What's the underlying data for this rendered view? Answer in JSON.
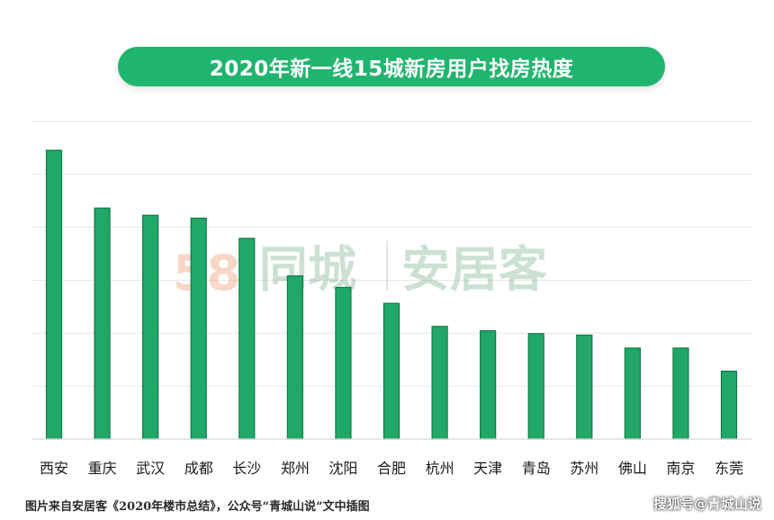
{
  "chart_data": {
    "type": "bar",
    "title": "2020年新一线15城新房用户找房热度",
    "categories": [
      "西安",
      "重庆",
      "武汉",
      "成都",
      "长沙",
      "郑州",
      "沈阳",
      "合肥",
      "杭州",
      "天津",
      "青岛",
      "苏州",
      "佛山",
      "南京",
      "东莞"
    ],
    "values": [
      100,
      80,
      77.5,
      76.5,
      69.5,
      56.5,
      52.5,
      47,
      39,
      37.5,
      36.5,
      36,
      31.5,
      31.5,
      23.5
    ],
    "ylim": [
      0,
      110
    ],
    "grid": true,
    "colors": {
      "bar": "#21a869",
      "bar_border": "#0f7a45",
      "title_bg": "#20b56e"
    }
  },
  "watermark": {
    "logo_number": "58",
    "brand_a": "同城",
    "brand_b": "安居客"
  },
  "footer": {
    "source_note": "图片来自安居客《2020年楼市总结》，公众号“青城山说”文中插图",
    "credit": "搜狐号@青城山说"
  }
}
